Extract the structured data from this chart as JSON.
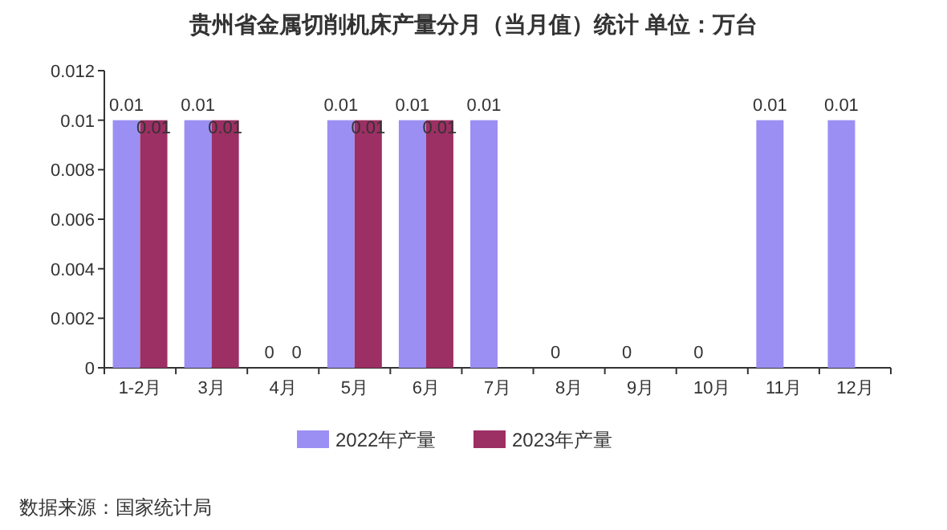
{
  "chart_data": {
    "type": "bar",
    "title": "贵州省金属切削机床产量分月（当月值）统计 单位：万台",
    "categories": [
      "1-2月",
      "3月",
      "4月",
      "5月",
      "6月",
      "7月",
      "8月",
      "9月",
      "10月",
      "11月",
      "12月"
    ],
    "series": [
      {
        "name": "2022年产量",
        "color": "#9b8ff3",
        "values": [
          0.01,
          0.01,
          0,
          0.01,
          0.01,
          0.01,
          0,
          0,
          0,
          0.01,
          0.01
        ]
      },
      {
        "name": "2023年产量",
        "color": "#9c2f63",
        "values": [
          0.01,
          0.01,
          0,
          0.01,
          0.01,
          null,
          null,
          null,
          null,
          null,
          null
        ]
      }
    ],
    "ylim": [
      0,
      0.012
    ],
    "yticks": [
      0,
      0.002,
      0.004,
      0.006,
      0.008,
      0.01,
      0.012
    ],
    "data_labels": true,
    "legend": "bottom",
    "grid": false,
    "annotations": [
      "数据来源：国家统计局"
    ]
  }
}
